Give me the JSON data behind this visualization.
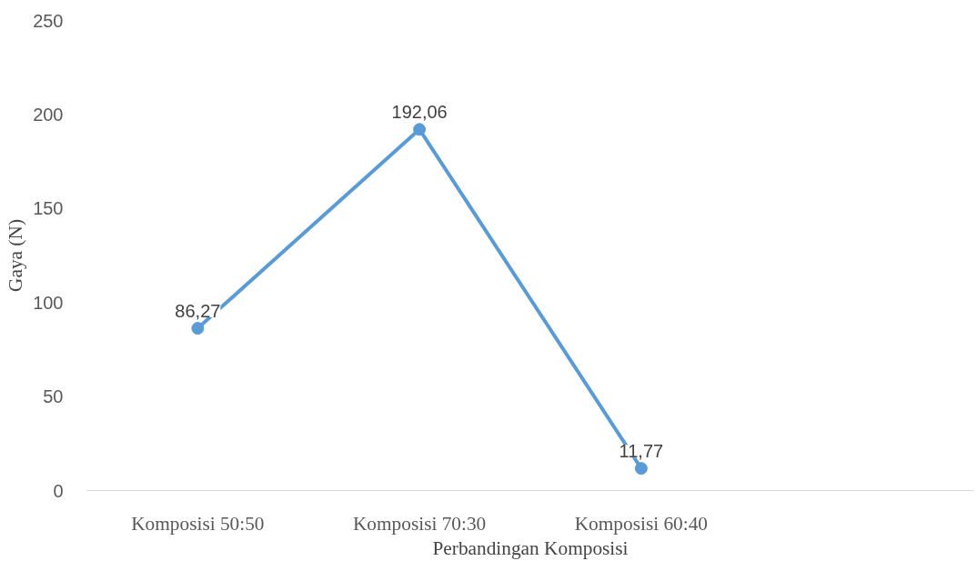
{
  "chart_data": {
    "type": "line",
    "xlabel": "Perbandingan Komposisi",
    "ylabel": "Gaya (N)",
    "categories": [
      "Komposisi 50:50",
      "Komposisi 70:30",
      "Komposisi 60:40",
      null
    ],
    "values": [
      86.27,
      192.06,
      11.77,
      null
    ],
    "value_labels": [
      "86,27",
      "192,06",
      "11,77",
      null
    ],
    "color": "#5b9bd5",
    "marker": "circle",
    "line_style": "solid",
    "ylim": [
      0,
      250
    ],
    "yticks": [
      0,
      50,
      100,
      150,
      200,
      250
    ]
  }
}
